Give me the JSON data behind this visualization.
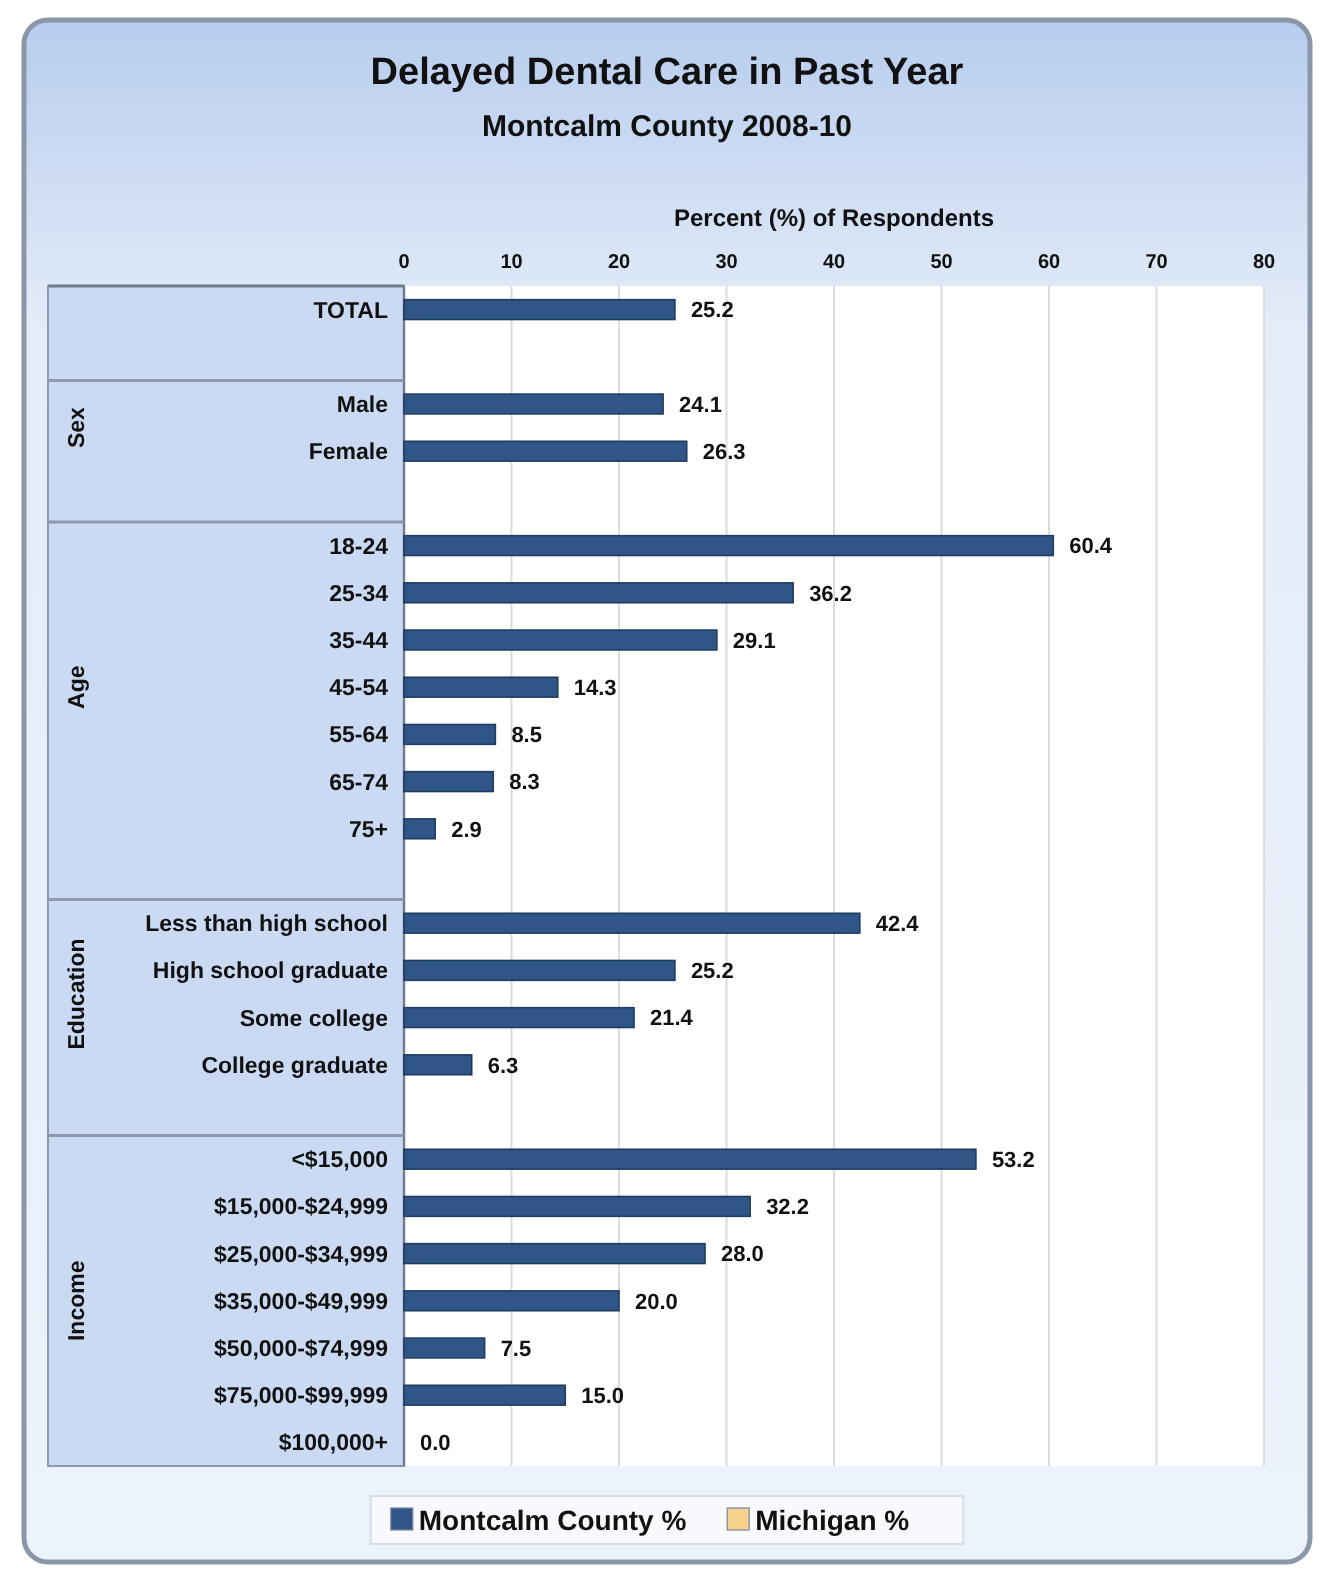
{
  "chart_data": {
    "type": "bar",
    "orientation": "horizontal",
    "title": "Delayed Dental Care in Past Year",
    "subtitle": "Montcalm County 2008-10",
    "xlabel": "Percent (%) of Respondents",
    "categories": [
      "TOTAL",
      null,
      "Male",
      "Female",
      null,
      "18-24",
      "25-34",
      "35-44",
      "45-54",
      "55-64",
      "65-74",
      "75+",
      null,
      "Less than high school",
      "High school graduate",
      "Some college",
      "College graduate",
      null,
      "<$15,000",
      "$15,000-$24,999",
      "$25,000-$34,999",
      "$35,000-$49,999",
      "$50,000-$74,999",
      "$75,000-$99,999",
      "$100,000+"
    ],
    "series": [
      {
        "name": "Montcalm County %",
        "color": "#2f5687",
        "values": [
          25.2,
          null,
          24.1,
          26.3,
          null,
          60.4,
          36.2,
          29.1,
          14.3,
          8.5,
          8.3,
          2.9,
          null,
          42.4,
          25.2,
          21.4,
          6.3,
          null,
          53.2,
          32.2,
          28.0,
          20.0,
          7.5,
          15.0,
          0.0
        ],
        "value_labels": [
          "25.2",
          null,
          "24.1",
          "26.3",
          null,
          "60.4",
          "36.2",
          "29.1",
          "14.3",
          "8.5",
          "8.3",
          "2.9",
          null,
          "42.4",
          "25.2",
          "21.4",
          "6.3",
          null,
          "53.2",
          "32.2",
          "28.0",
          "20.0",
          "7.5",
          "15.0",
          "0.0"
        ]
      },
      {
        "name": "Michigan %",
        "color": "#f7d28c",
        "values": [
          null,
          null,
          null,
          null,
          null,
          null,
          null,
          null,
          null,
          null,
          null,
          null,
          null,
          null,
          null,
          null,
          null,
          null,
          null,
          null,
          null,
          null,
          null,
          null,
          null
        ]
      }
    ],
    "annotations": [
      "Sex",
      "Age",
      "Education",
      "Income"
    ],
    "xlim": [
      0,
      80
    ],
    "xticks": [
      0,
      10,
      20,
      30,
      40,
      50,
      60,
      70,
      80
    ],
    "grid": "x",
    "legend": "bottom"
  }
}
